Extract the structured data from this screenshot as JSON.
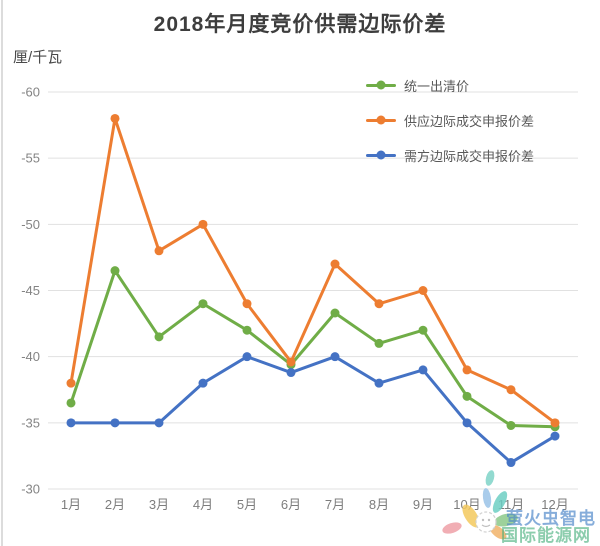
{
  "title": "2018年月度竞价供需边际价差",
  "y_unit_label": "厘/千瓦",
  "watermark": {
    "brand_text": "萤火虫智电",
    "site_text": "国际能源网"
  },
  "chart_data": {
    "type": "line",
    "title": "2018年月度竞价供需边际价差",
    "xlabel": "",
    "ylabel": "厘/千瓦",
    "categories": [
      "1月",
      "2月",
      "3月",
      "4月",
      "5月",
      "6月",
      "7月",
      "8月",
      "9月",
      "10月",
      "11月",
      "12月"
    ],
    "y_ticks": [
      -60,
      -55,
      -50,
      -45,
      -40,
      -35,
      -30
    ],
    "ylim": [
      -60,
      -30
    ],
    "y_axis_reversed": true,
    "grid": "horizontal-only",
    "legend_position": "top-right-inside",
    "marker": "circle",
    "series": [
      {
        "name": "统一出清价",
        "color": "#70AD47",
        "values": [
          -36.5,
          -46.5,
          -41.5,
          -44,
          -42,
          -39.4,
          -43.3,
          -41,
          -42,
          -37,
          -34.8,
          -34.7
        ]
      },
      {
        "name": "供应边际成交申报价差",
        "color": "#ED7D31",
        "values": [
          -38,
          -58,
          -48,
          -50,
          -44,
          -39.6,
          -47,
          -44,
          -45,
          -39,
          -37.5,
          -35
        ]
      },
      {
        "name": "需方边际成交申报价差",
        "color": "#4472C4",
        "values": [
          -35,
          -35,
          -35,
          -38,
          -40,
          -38.8,
          -40,
          -38,
          -39,
          -35,
          -32,
          -34
        ]
      }
    ]
  }
}
